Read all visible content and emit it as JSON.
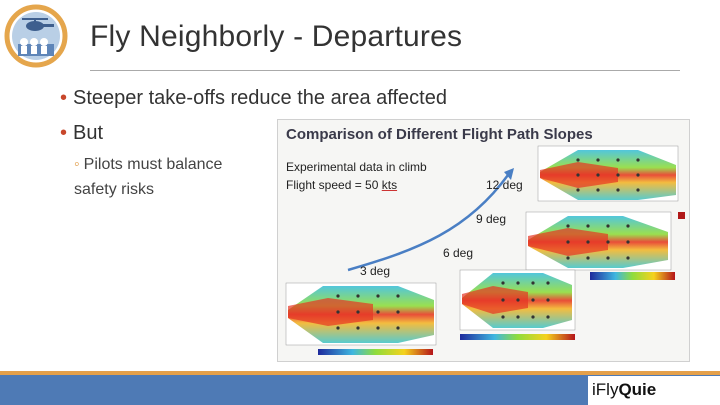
{
  "header": {
    "title": "Fly Neighborly - Departures"
  },
  "bullets": [
    {
      "text": "Steeper take-offs reduce the area affected"
    },
    {
      "text": "But"
    }
  ],
  "sub_bullet": {
    "text": "Pilots must balance safety risks"
  },
  "figure": {
    "title": "Comparison of Different Flight Path Slopes",
    "info_line1": "Experimental data in climb",
    "info_line2_prefix": "Flight speed = 50 ",
    "info_line2_unit": "kts",
    "slopes": [
      "12 deg",
      "9 deg",
      "6 deg",
      "3 deg"
    ]
  },
  "footer": {
    "brand_prefix": "i",
    "brand_mid": "Fly",
    "brand_suffix": "Quie"
  },
  "colors": {
    "accent": "#c8472b",
    "footer_blue": "#4e7ab5",
    "footer_orange": "#e4a04a"
  }
}
